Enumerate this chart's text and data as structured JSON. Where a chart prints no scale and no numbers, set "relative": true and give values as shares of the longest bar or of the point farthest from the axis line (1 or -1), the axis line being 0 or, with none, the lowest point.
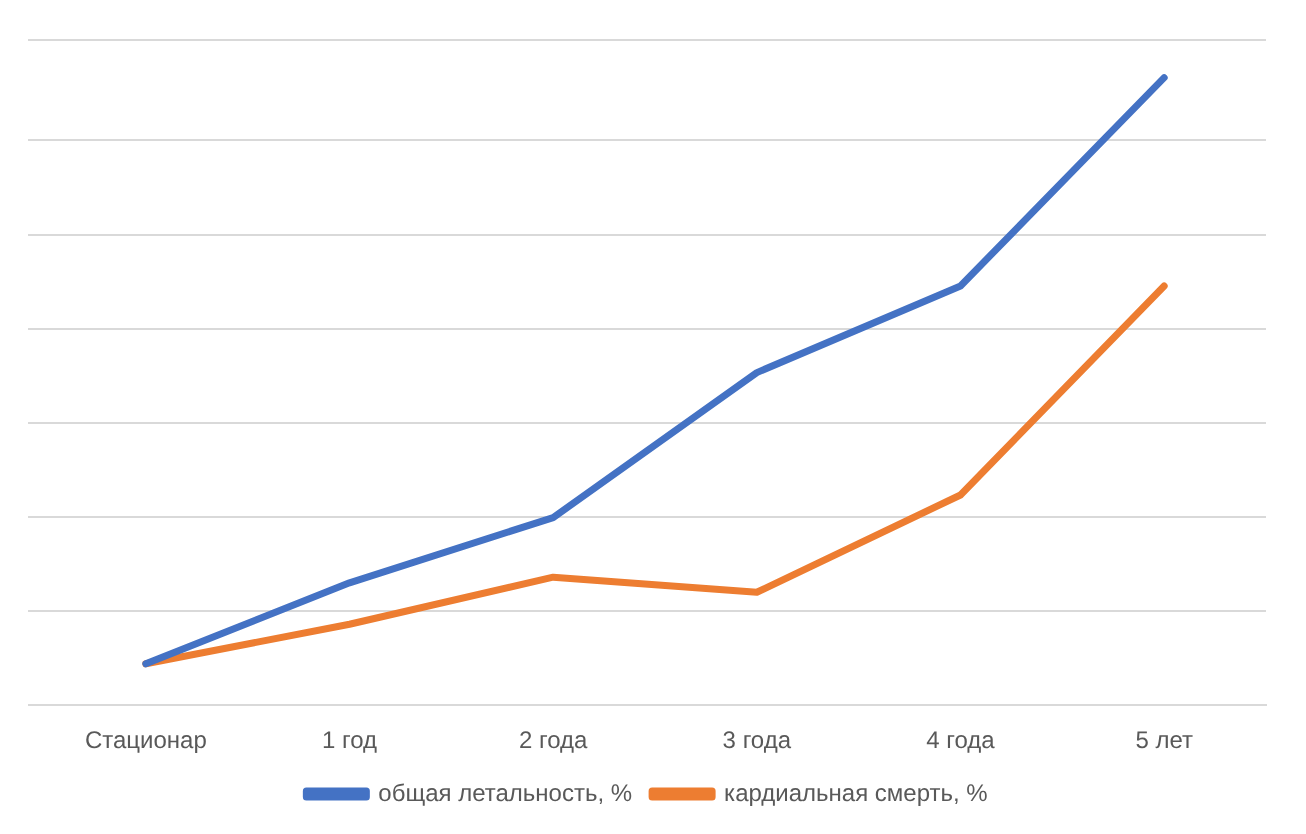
{
  "chart_data": {
    "type": "line",
    "relative": true,
    "categories": [
      "Стационар",
      "1 год",
      "2 года",
      "3 года",
      "4 года",
      "5 лет"
    ],
    "series": [
      {
        "name": "общая летальность, %",
        "color": "#4472c4",
        "values": [
          0.066,
          0.195,
          0.299,
          0.53,
          0.668,
          1
        ]
      },
      {
        "name": "кардиальная смерть, %",
        "color": "#ed7d31",
        "values": [
          0.066,
          0.129,
          0.204,
          0.18,
          0.335,
          0.668
        ]
      }
    ],
    "grid": "y",
    "legend": "bottom",
    "marker": "none",
    "line_style": "solid"
  }
}
